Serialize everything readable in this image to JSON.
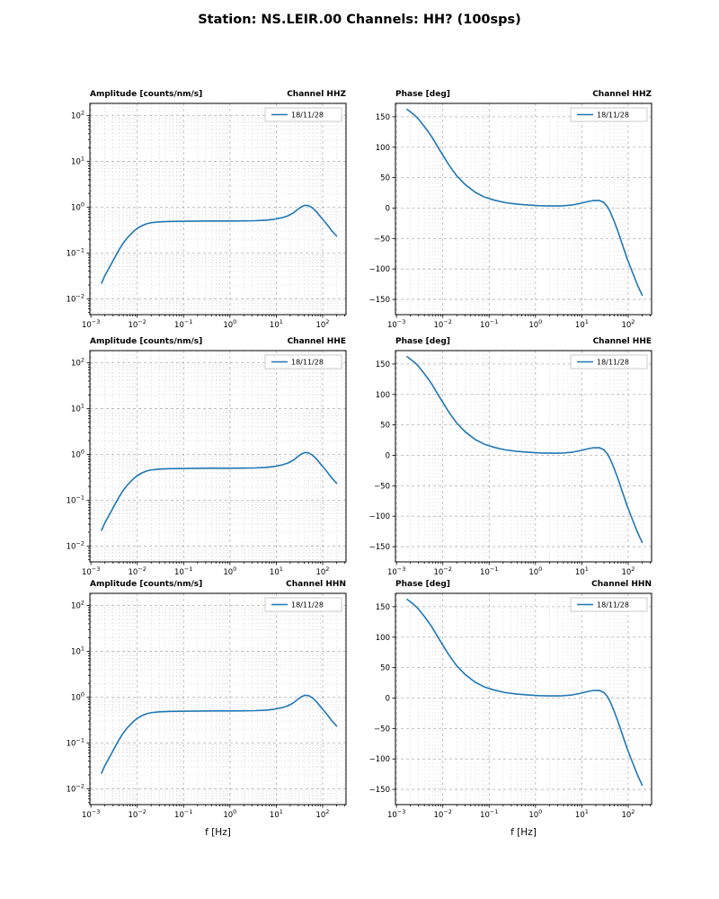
{
  "chart_data": {
    "type": "line",
    "figure_title": "Station: NS.LEIR.00 Channels: HH? (100sps)",
    "channels": [
      "HHZ",
      "HHE",
      "HHN"
    ],
    "legend_label": "18/11/28",
    "legend_position": "upper right",
    "line_color": "#1f77b4",
    "xlabel": "f [Hz]",
    "grid": "major and minor, dashed gray, log-x",
    "x_tick_labels": [
      "10^-3",
      "10^-2",
      "10^-1",
      "10^0",
      "10^1",
      "10^2"
    ],
    "amplitude": {
      "title": "Amplitude [counts/nm/s]",
      "xscale": "log",
      "yscale": "log",
      "xlim": [
        0.00095,
        320
      ],
      "ylim": [
        0.0045,
        185
      ],
      "x_ticks": [
        0.001,
        0.01,
        0.1,
        1,
        10,
        100
      ],
      "y_ticks": [
        0.01,
        0.1,
        1,
        10,
        100
      ],
      "x": [
        0.0017,
        0.002,
        0.0025,
        0.003,
        0.004,
        0.005,
        0.006,
        0.008,
        0.01,
        0.013,
        0.016,
        0.02,
        0.03,
        0.05,
        0.08,
        0.13,
        0.22,
        0.4,
        0.7,
        1.2,
        2,
        3.5,
        6,
        9,
        13,
        18,
        24,
        30,
        36,
        42,
        50,
        60,
        75,
        95,
        120,
        160,
        200
      ],
      "y": [
        0.022,
        0.032,
        0.048,
        0.068,
        0.115,
        0.165,
        0.21,
        0.285,
        0.345,
        0.4,
        0.435,
        0.458,
        0.478,
        0.488,
        0.492,
        0.495,
        0.497,
        0.499,
        0.5,
        0.5,
        0.502,
        0.507,
        0.52,
        0.545,
        0.585,
        0.65,
        0.76,
        0.92,
        1.04,
        1.1,
        1.08,
        0.97,
        0.78,
        0.58,
        0.44,
        0.3,
        0.235
      ]
    },
    "phase": {
      "title": "Phase [deg]",
      "xscale": "log",
      "yscale": "linear",
      "xlim": [
        0.00095,
        320
      ],
      "ylim": [
        -175,
        172
      ],
      "x_ticks": [
        0.001,
        0.01,
        0.1,
        1,
        10,
        100
      ],
      "y_ticks": [
        -150,
        -100,
        -50,
        0,
        50,
        100,
        150
      ],
      "x": [
        0.0017,
        0.002,
        0.0025,
        0.003,
        0.004,
        0.005,
        0.006,
        0.008,
        0.01,
        0.013,
        0.016,
        0.02,
        0.03,
        0.05,
        0.08,
        0.13,
        0.22,
        0.4,
        0.7,
        1.2,
        2,
        3.5,
        6,
        9,
        13,
        18,
        24,
        30,
        36,
        42,
        50,
        60,
        75,
        95,
        120,
        160,
        200
      ],
      "y": [
        162,
        158,
        152,
        146,
        134,
        124,
        115,
        99,
        87,
        73,
        63,
        53,
        39,
        26,
        18,
        13,
        9,
        6.5,
        5,
        4,
        3.5,
        3.5,
        5,
        7.5,
        10.5,
        12.5,
        12.5,
        9,
        2,
        -8,
        -22,
        -38,
        -60,
        -83,
        -103,
        -127,
        -143
      ]
    },
    "subplots": [
      {
        "kind": "amplitude",
        "channel": "HHZ",
        "row": 0,
        "col": 0,
        "title_left": "Amplitude [counts/nm/s]",
        "title_right": "Channel HHZ"
      },
      {
        "kind": "phase",
        "channel": "HHZ",
        "row": 0,
        "col": 1,
        "title_left": "Phase [deg]",
        "title_right": "Channel HHZ"
      },
      {
        "kind": "amplitude",
        "channel": "HHE",
        "row": 1,
        "col": 0,
        "title_left": "Amplitude [counts/nm/s]",
        "title_right": "Channel HHE"
      },
      {
        "kind": "phase",
        "channel": "HHE",
        "row": 1,
        "col": 1,
        "title_left": "Phase [deg]",
        "title_right": "Channel HHE"
      },
      {
        "kind": "amplitude",
        "channel": "HHN",
        "row": 2,
        "col": 0,
        "title_left": "Amplitude [counts/nm/s]",
        "title_right": "Channel HHN"
      },
      {
        "kind": "phase",
        "channel": "HHN",
        "row": 2,
        "col": 1,
        "title_left": "Phase [deg]",
        "title_right": "Channel HHN"
      }
    ]
  }
}
